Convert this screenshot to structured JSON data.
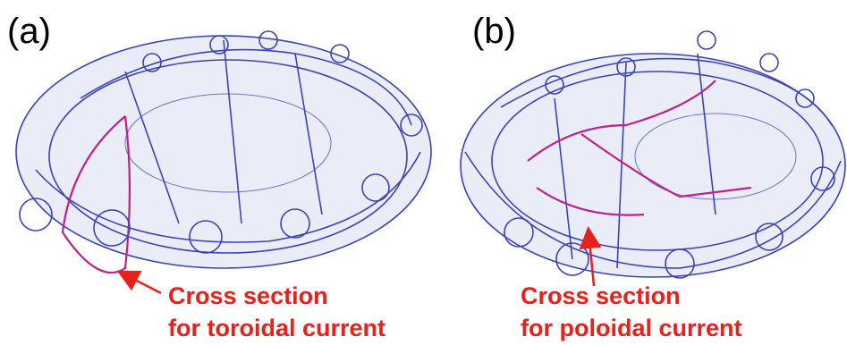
{
  "panels": [
    {
      "label": "(a)",
      "annotation": [
        "Cross section",
        "for toroidal current"
      ]
    },
    {
      "label": "(b)",
      "annotation": [
        "Cross section",
        "for poloidal current"
      ]
    }
  ]
}
